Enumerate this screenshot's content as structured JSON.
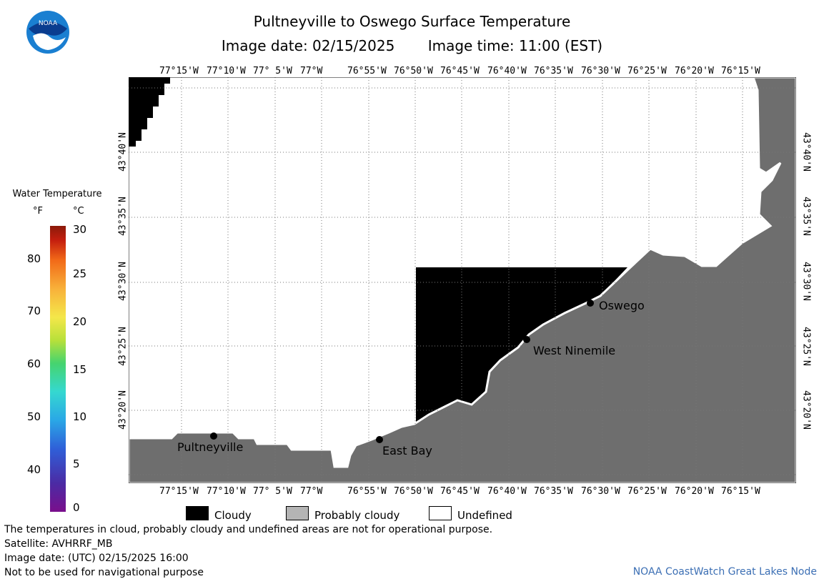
{
  "title": "Pultneyville to Oswego Surface Temperature",
  "image_date_label": "Image date: 02/15/2025",
  "image_time_label": "Image time: 11:00 (EST)",
  "logo": {
    "text": "NOAA",
    "colors": {
      "outer": "#1a7fd1",
      "inner": "#0a3d8f",
      "bird": "#ffffff"
    }
  },
  "map": {
    "lon_labels": [
      "77°15'W",
      "77°10'W",
      "77° 5'W",
      "77°W",
      "76°55'W",
      "76°50'W",
      "76°45'W",
      "76°40'W",
      "76°35'W",
      "76°30'W",
      "76°25'W",
      "76°20'W",
      "76°15'W"
    ],
    "lat_labels": [
      "43°40'N",
      "43°35'N",
      "43°30'N",
      "43°25'N",
      "43°20'N"
    ],
    "places": [
      {
        "name": "Oswego"
      },
      {
        "name": "West Ninemile"
      },
      {
        "name": "Pultneyville"
      },
      {
        "name": "East Bay"
      }
    ],
    "colors": {
      "land": "#6e6e6e",
      "cloud": "#000000",
      "water": "#ffffff",
      "grid": "#777777"
    }
  },
  "legend": {
    "title": "Water Temperature",
    "unit_f": "°F",
    "unit_c": "°C",
    "f_ticks": [
      "80",
      "70",
      "60",
      "50",
      "40"
    ],
    "c_ticks": [
      "30",
      "25",
      "20",
      "15",
      "10",
      "5",
      "0"
    ]
  },
  "key": [
    {
      "label": "Cloudy",
      "color": "#000000"
    },
    {
      "label": "Probably cloudy",
      "color": "#b4b4b4"
    },
    {
      "label": "Undefined",
      "color": "#ffffff"
    }
  ],
  "footer": {
    "note": "The temperatures in cloud, probably cloudy and undefined areas are not for operational purpose.",
    "satellite": "Satellite: AVHRRF_MB",
    "utc_date": "Image date: (UTC) 02/15/2025  16:00",
    "nav_warning": "Not to be used for navigational purpose",
    "credit": "NOAA CoastWatch Great Lakes Node"
  }
}
